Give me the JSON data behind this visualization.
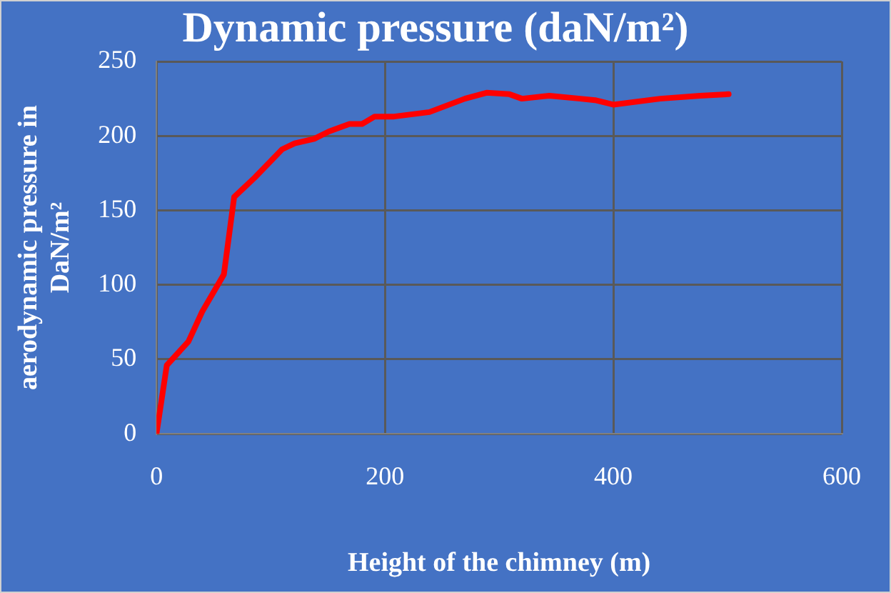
{
  "chart_data": {
    "type": "line",
    "title": "Dynamic pressure (daN/m²)",
    "xlabel": "Height of the chimney (m)",
    "ylabel": "aerodynamic pressure in DaN/m²",
    "x": [
      0,
      9,
      28,
      40,
      59,
      68,
      86,
      110,
      121,
      138,
      151,
      169,
      180,
      191,
      208,
      239,
      270,
      289,
      309,
      320,
      344,
      371,
      384,
      400,
      441,
      476,
      501
    ],
    "series": [
      {
        "color": "#ff0000",
        "values": [
          0,
          46,
          62,
          82,
          107,
          159,
          172,
          191,
          195,
          198,
          203,
          208,
          208,
          213,
          213,
          216,
          225,
          229,
          228,
          225,
          227,
          225,
          224,
          221,
          225,
          227,
          228
        ]
      }
    ],
    "xlim": [
      0,
      600
    ],
    "xticks": [
      0,
      200,
      400,
      600
    ],
    "ylim": [
      0,
      250
    ],
    "yticks": [
      0,
      50,
      100,
      150,
      200,
      250
    ],
    "grid": true,
    "legend": false,
    "marker": "none",
    "line_style": "solid"
  }
}
